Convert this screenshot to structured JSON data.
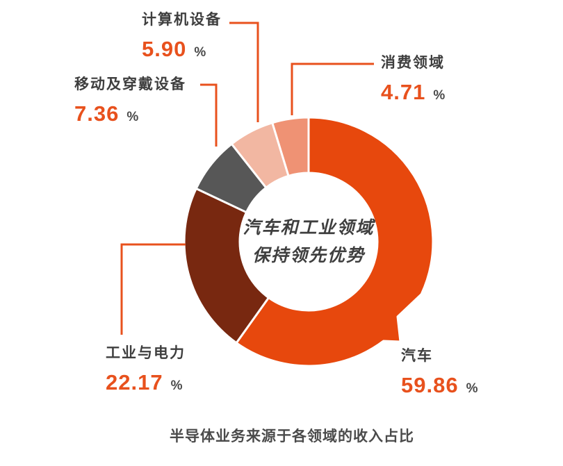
{
  "accent_color": "#e8511d",
  "caption_color": "#4a4a4a",
  "chart_data": {
    "type": "pie",
    "subtype": "donut",
    "title": "半导体业务来源于各领域的收入占比",
    "center_label": [
      "汽车和工业领域",
      "保持领先优势"
    ],
    "unit": "%",
    "start_angle_deg": 0,
    "direction": "clockwise",
    "legend_position": "outside-callouts",
    "segments": [
      {
        "id": "automotive",
        "name": "汽车",
        "value": "59.86",
        "color": "#e7480d",
        "tail": true
      },
      {
        "id": "industrial-power",
        "name": "工业与电力",
        "value": "22.17",
        "color": "#782810"
      },
      {
        "id": "mobile-wearable",
        "name": "移动及穿戴设备",
        "value": "7.36",
        "color": "#575757"
      },
      {
        "id": "computer-equipment",
        "name": "计算机设备",
        "value": "5.90",
        "color": "#f2b7a2"
      },
      {
        "id": "consumer",
        "name": "消费领域",
        "value": "4.71",
        "color": "#ef9274"
      }
    ]
  }
}
